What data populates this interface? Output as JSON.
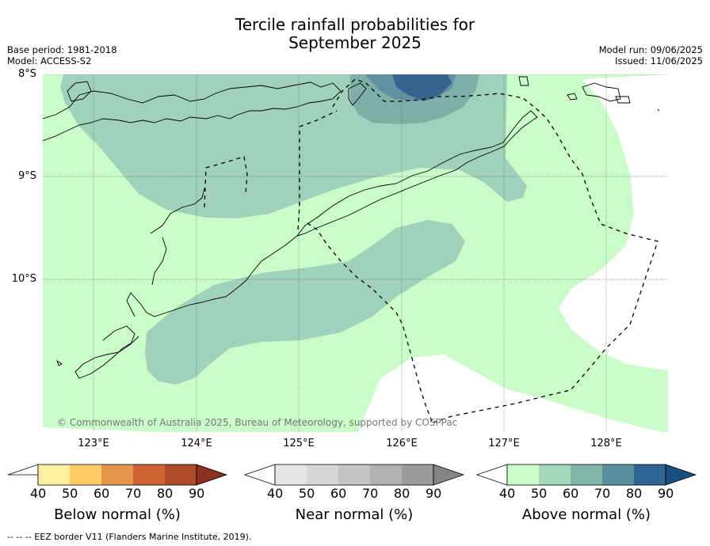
{
  "title_line1": "Tercile rainfall probabilities for",
  "title_line2": "September 2025",
  "meta": {
    "base_period": "Base period: 1981-2018",
    "model": "Model: ACCESS-S2",
    "model_run": "Model run: 09/06/2025",
    "issued": "Issued: 11/06/2025"
  },
  "axes": {
    "lat_labels": [
      "8°S",
      "9°S",
      "10°S"
    ],
    "lon_labels": [
      "123°E",
      "124°E",
      "125°E",
      "126°E",
      "127°E",
      "128°E"
    ]
  },
  "copyright": "© Commonwealth of Australia 2025, Bureau of Meteorology, supported by COSPPac",
  "colorbars": [
    {
      "title": "Below normal (%)",
      "ticks": [
        "40",
        "50",
        "60",
        "70",
        "80",
        "90"
      ],
      "colors": [
        "#fff0a0",
        "#fdcb66",
        "#e3944a",
        "#cd6232",
        "#ad4a28",
        "#8c3020"
      ]
    },
    {
      "title": "Near normal (%)",
      "ticks": [
        "40",
        "50",
        "60",
        "70",
        "80",
        "90"
      ],
      "colors": [
        "#e5e5e5",
        "#d6d6d6",
        "#c4c4c4",
        "#b1b1b1",
        "#9c9c9c",
        "#858585"
      ]
    },
    {
      "title": "Above normal (%)",
      "ticks": [
        "40",
        "50",
        "60",
        "70",
        "80",
        "90"
      ],
      "colors": [
        "#c9fcc9",
        "#a4d8bd",
        "#82b6aa",
        "#5a8f9f",
        "#2e6496",
        "#1a4d80"
      ]
    }
  ],
  "map_colors": {
    "above_40_50": "#c9fcc9",
    "above_50_60": "#9fd1bb",
    "above_60_70": "#7eb0a8",
    "above_70_80": "#5a8da1",
    "above_80_90": "#35658f"
  },
  "footer": "-- -- -- EEZ border V11 (Flanders Marine Institute, 2019)."
}
